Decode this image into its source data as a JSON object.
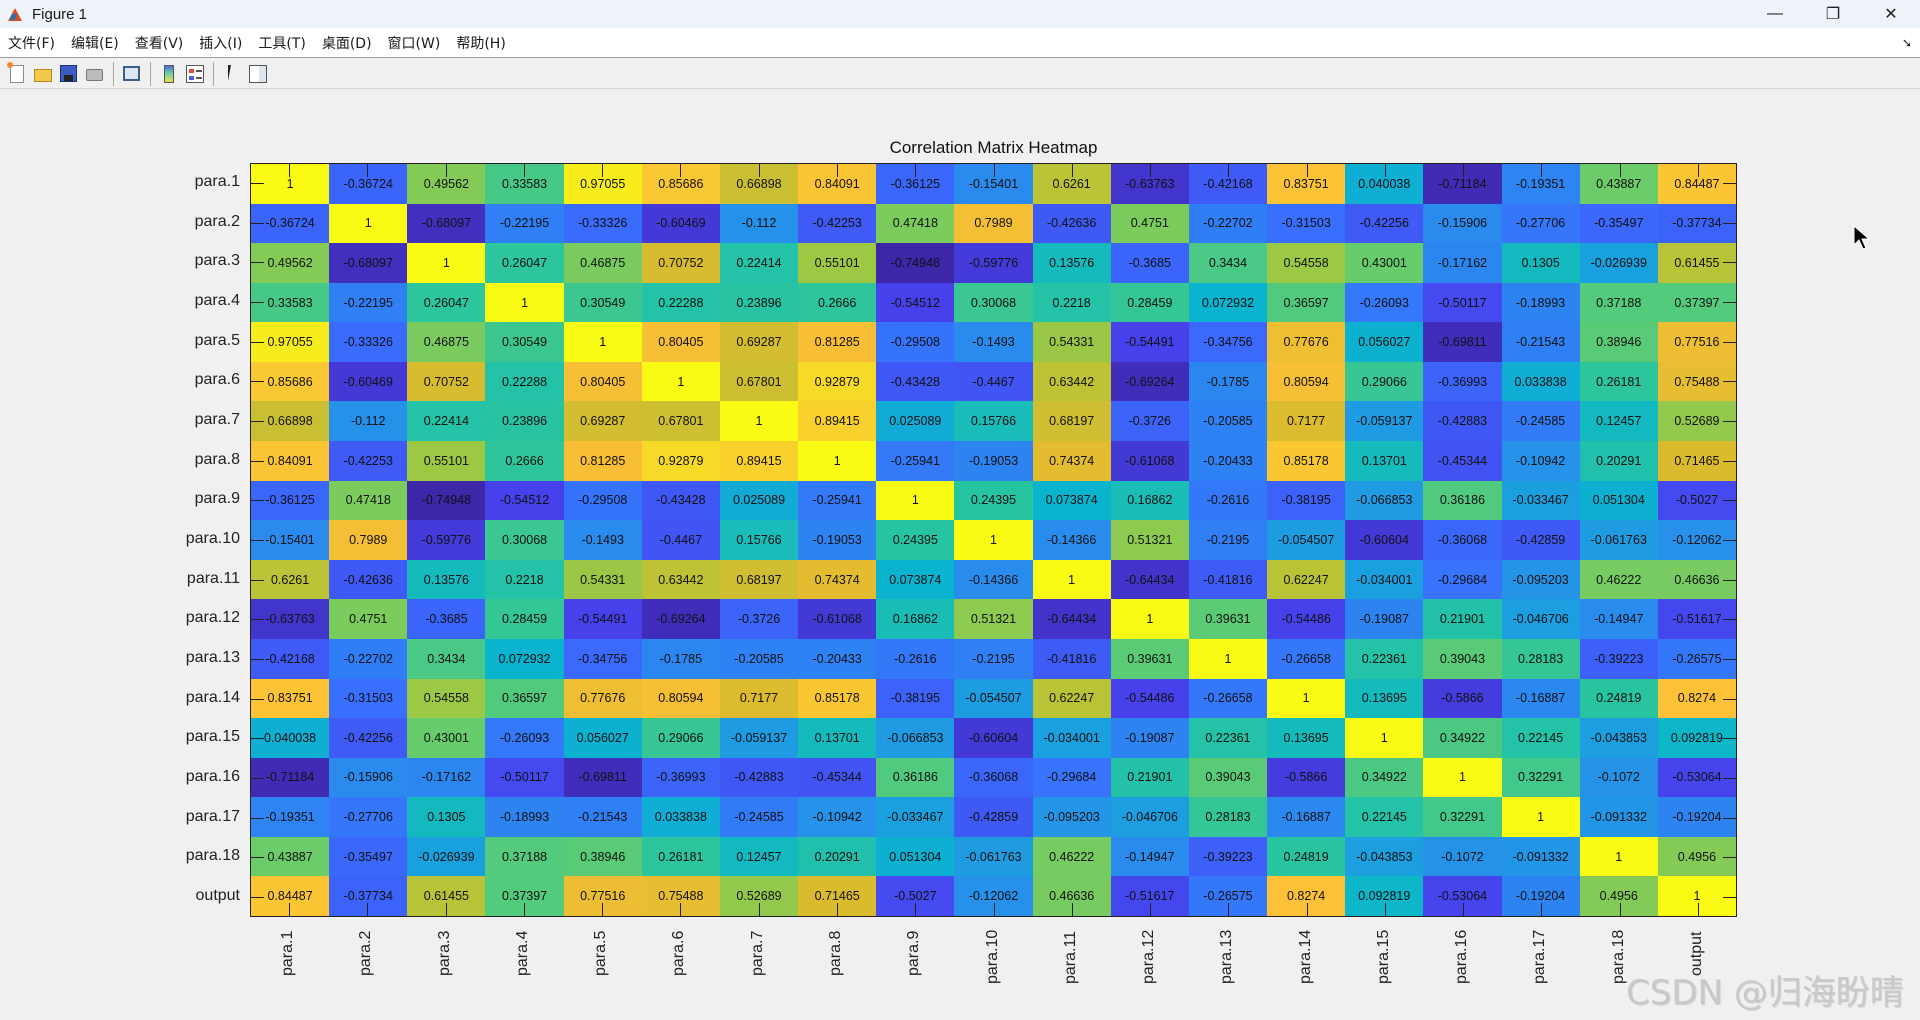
{
  "window": {
    "title": "Figure 1",
    "controls": {
      "minimize": "—",
      "restore": "❐",
      "close": "✕"
    }
  },
  "menubar": {
    "items": [
      "文件(F)",
      "编辑(E)",
      "查看(V)",
      "插入(I)",
      "工具(T)",
      "桌面(D)",
      "窗口(W)",
      "帮助(H)"
    ],
    "dock_icon": "➘"
  },
  "toolbar": {
    "buttons": [
      "new-figure-icon",
      "open-file-icon",
      "save-icon",
      "print-icon",
      "link-plot-icon",
      "insert-colorbar-icon",
      "insert-legend-icon",
      "edit-plot-pointer-icon",
      "property-inspector-icon"
    ]
  },
  "watermark": "CSDN @归海盼晴",
  "chart_data": {
    "type": "heatmap",
    "title": "Correlation Matrix Heatmap",
    "xlabel": "",
    "ylabel": "",
    "colormap": "parula",
    "clim": [
      -0.75,
      1
    ],
    "labels": [
      "para.1",
      "para.2",
      "para.3",
      "para.4",
      "para.5",
      "para.6",
      "para.7",
      "para.8",
      "para.9",
      "para.10",
      "para.11",
      "para.12",
      "para.13",
      "para.14",
      "para.15",
      "para.16",
      "para.17",
      "para.18",
      "output"
    ],
    "matrix": [
      [
        "1",
        "-0.36724",
        "0.49562",
        "0.33583",
        "0.97055",
        "0.85686",
        "0.66898",
        "0.84091",
        "-0.36125",
        "-0.15401",
        "0.6261",
        "-0.63763",
        "-0.42168",
        "0.83751",
        "0.040038",
        "-0.71184",
        "-0.19351",
        "0.43887",
        "0.84487"
      ],
      [
        "-0.36724",
        "1",
        "-0.68097",
        "-0.22195",
        "-0.33326",
        "-0.60469",
        "-0.112",
        "-0.42253",
        "0.47418",
        "0.7989",
        "-0.42636",
        "0.4751",
        "-0.22702",
        "-0.31503",
        "-0.42256",
        "-0.15906",
        "-0.27706",
        "-0.35497",
        "-0.37734"
      ],
      [
        "0.49562",
        "-0.68097",
        "1",
        "0.26047",
        "0.46875",
        "0.70752",
        "0.22414",
        "0.55101",
        "-0.74948",
        "-0.59776",
        "0.13576",
        "-0.3685",
        "0.3434",
        "0.54558",
        "0.43001",
        "-0.17162",
        "0.1305",
        "-0.026939",
        "0.61455"
      ],
      [
        "0.33583",
        "-0.22195",
        "0.26047",
        "1",
        "0.30549",
        "0.22288",
        "0.23896",
        "0.2666",
        "-0.54512",
        "0.30068",
        "0.2218",
        "0.28459",
        "0.072932",
        "0.36597",
        "-0.26093",
        "-0.50117",
        "-0.18993",
        "0.37188",
        "0.37397"
      ],
      [
        "0.97055",
        "-0.33326",
        "0.46875",
        "0.30549",
        "1",
        "0.80405",
        "0.69287",
        "0.81285",
        "-0.29508",
        "-0.1493",
        "0.54331",
        "-0.54491",
        "-0.34756",
        "0.77676",
        "0.056027",
        "-0.69811",
        "-0.21543",
        "0.38946",
        "0.77516"
      ],
      [
        "0.85686",
        "-0.60469",
        "0.70752",
        "0.22288",
        "0.80405",
        "1",
        "0.67801",
        "0.92879",
        "-0.43428",
        "-0.4467",
        "0.63442",
        "-0.69264",
        "-0.1785",
        "0.80594",
        "0.29066",
        "-0.36993",
        "0.033838",
        "0.26181",
        "0.75488"
      ],
      [
        "0.66898",
        "-0.112",
        "0.22414",
        "0.23896",
        "0.69287",
        "0.67801",
        "1",
        "0.89415",
        "0.025089",
        "0.15766",
        "0.68197",
        "-0.3726",
        "-0.20585",
        "0.7177",
        "-0.059137",
        "-0.42883",
        "-0.24585",
        "0.12457",
        "0.52689"
      ],
      [
        "0.84091",
        "-0.42253",
        "0.55101",
        "0.2666",
        "0.81285",
        "0.92879",
        "0.89415",
        "1",
        "-0.25941",
        "-0.19053",
        "0.74374",
        "-0.61068",
        "-0.20433",
        "0.85178",
        "0.13701",
        "-0.45344",
        "-0.10942",
        "0.20291",
        "0.71465"
      ],
      [
        "-0.36125",
        "0.47418",
        "-0.74948",
        "-0.54512",
        "-0.29508",
        "-0.43428",
        "0.025089",
        "-0.25941",
        "1",
        "0.24395",
        "0.073874",
        "0.16862",
        "-0.2616",
        "-0.38195",
        "-0.066853",
        "0.36186",
        "-0.033467",
        "0.051304",
        "-0.5027"
      ],
      [
        "-0.15401",
        "0.7989",
        "-0.59776",
        "0.30068",
        "-0.1493",
        "-0.4467",
        "0.15766",
        "-0.19053",
        "0.24395",
        "1",
        "-0.14366",
        "0.51321",
        "-0.2195",
        "-0.054507",
        "-0.60604",
        "-0.36068",
        "-0.42859",
        "-0.061763",
        "-0.12062"
      ],
      [
        "0.6261",
        "-0.42636",
        "0.13576",
        "0.2218",
        "0.54331",
        "0.63442",
        "0.68197",
        "0.74374",
        "0.073874",
        "-0.14366",
        "1",
        "-0.64434",
        "-0.41816",
        "0.62247",
        "-0.034001",
        "-0.29684",
        "-0.095203",
        "0.46222",
        "0.46636"
      ],
      [
        "-0.63763",
        "0.4751",
        "-0.3685",
        "0.28459",
        "-0.54491",
        "-0.69264",
        "-0.3726",
        "-0.61068",
        "0.16862",
        "0.51321",
        "-0.64434",
        "1",
        "0.39631",
        "-0.54486",
        "-0.19087",
        "0.21901",
        "-0.046706",
        "-0.14947",
        "-0.51617"
      ],
      [
        "-0.42168",
        "-0.22702",
        "0.3434",
        "0.072932",
        "-0.34756",
        "-0.1785",
        "-0.20585",
        "-0.20433",
        "-0.2616",
        "-0.2195",
        "-0.41816",
        "0.39631",
        "1",
        "-0.26658",
        "0.22361",
        "0.39043",
        "0.28183",
        "-0.39223",
        "-0.26575"
      ],
      [
        "0.83751",
        "-0.31503",
        "0.54558",
        "0.36597",
        "0.77676",
        "0.80594",
        "0.7177",
        "0.85178",
        "-0.38195",
        "-0.054507",
        "0.62247",
        "-0.54486",
        "-0.26658",
        "1",
        "0.13695",
        "-0.5866",
        "-0.16887",
        "0.24819",
        "0.8274"
      ],
      [
        "0.040038",
        "-0.42256",
        "0.43001",
        "-0.26093",
        "0.056027",
        "0.29066",
        "-0.059137",
        "0.13701",
        "-0.066853",
        "-0.60604",
        "-0.034001",
        "-0.19087",
        "0.22361",
        "0.13695",
        "1",
        "0.34922",
        "0.22145",
        "-0.043853",
        "0.092819"
      ],
      [
        "-0.71184",
        "-0.15906",
        "-0.17162",
        "-0.50117",
        "-0.69811",
        "-0.36993",
        "-0.42883",
        "-0.45344",
        "0.36186",
        "-0.36068",
        "-0.29684",
        "0.21901",
        "0.39043",
        "-0.5866",
        "0.34922",
        "1",
        "0.32291",
        "-0.1072",
        "-0.53064"
      ],
      [
        "-0.19351",
        "-0.27706",
        "0.1305",
        "-0.18993",
        "-0.21543",
        "0.033838",
        "-0.24585",
        "-0.10942",
        "-0.033467",
        "-0.42859",
        "-0.095203",
        "-0.046706",
        "0.28183",
        "-0.16887",
        "0.22145",
        "0.32291",
        "1",
        "-0.091332",
        "-0.19204"
      ],
      [
        "0.43887",
        "-0.35497",
        "-0.026939",
        "0.37188",
        "0.38946",
        "0.26181",
        "0.12457",
        "0.20291",
        "0.051304",
        "-0.061763",
        "0.46222",
        "-0.14947",
        "-0.39223",
        "0.24819",
        "-0.043853",
        "-0.1072",
        "-0.091332",
        "1",
        "0.4956"
      ],
      [
        "0.84487",
        "-0.37734",
        "0.61455",
        "0.37397",
        "0.77516",
        "0.75488",
        "0.52689",
        "0.71465",
        "-0.5027",
        "-0.12062",
        "0.46636",
        "-0.51617",
        "-0.26575",
        "0.8274",
        "0.092819",
        "-0.53064",
        "-0.19204",
        "0.4956",
        "1"
      ]
    ]
  }
}
